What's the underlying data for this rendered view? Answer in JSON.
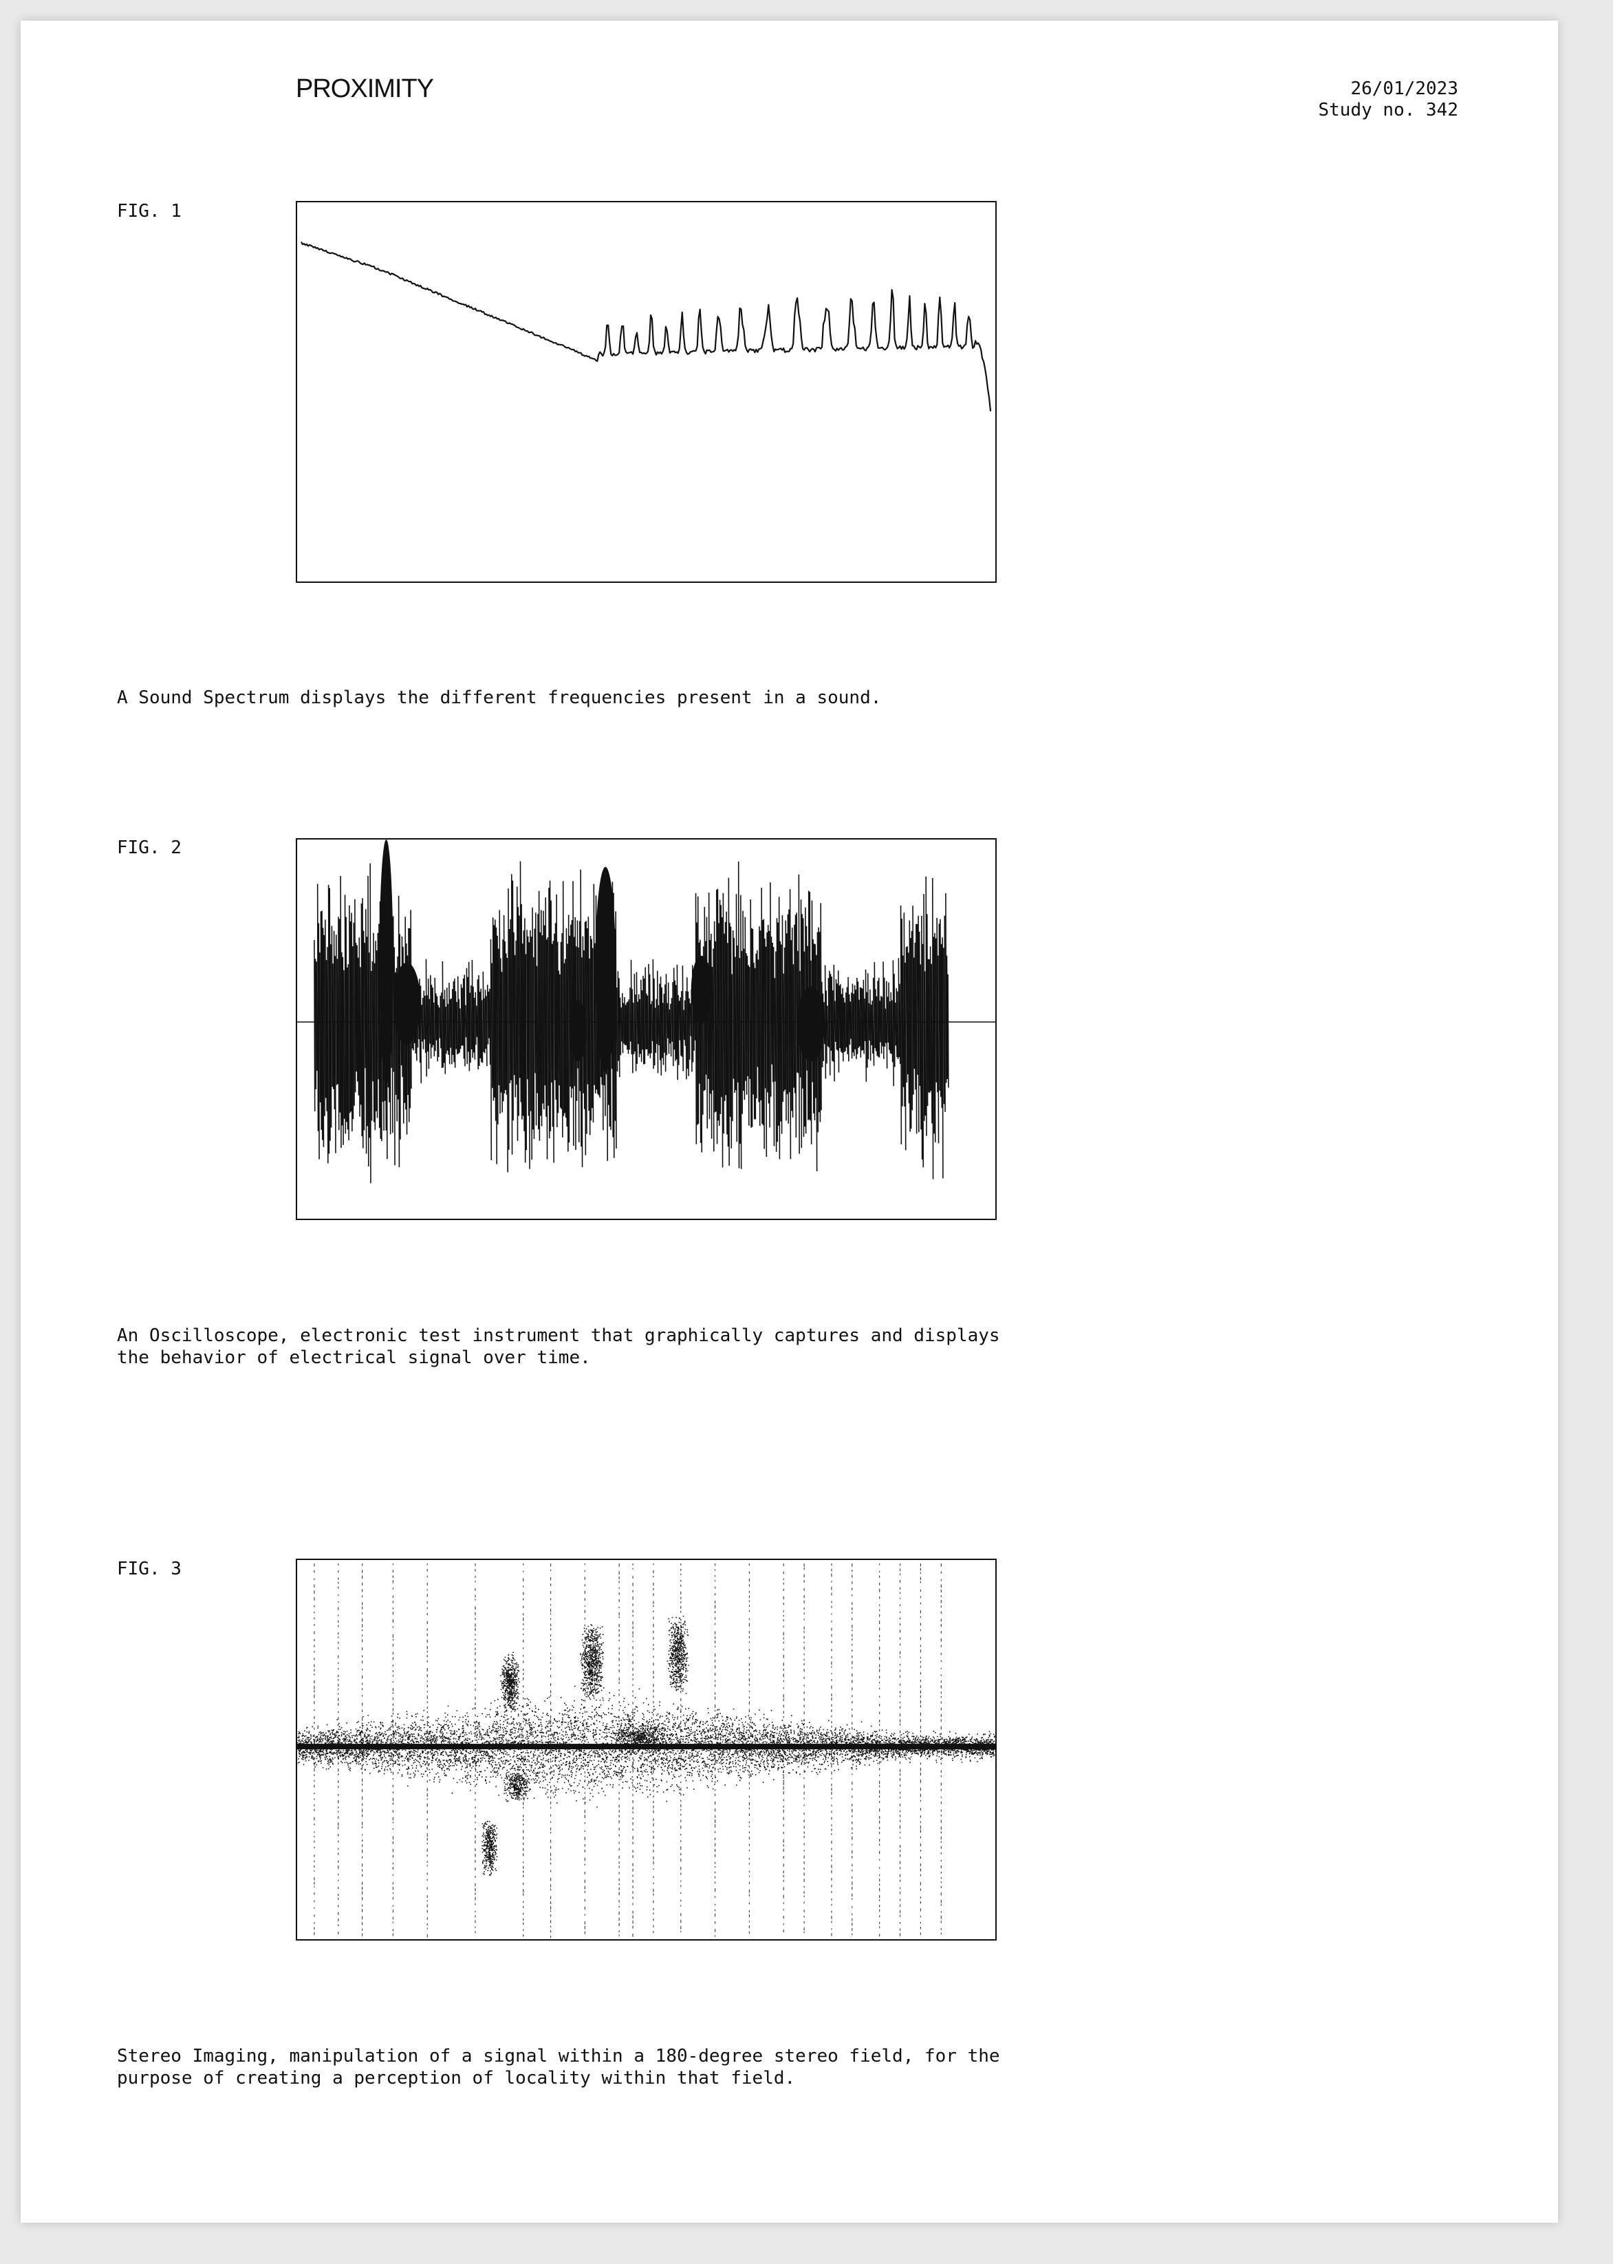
{
  "header": {
    "brand": "PROXIMITY",
    "date": "26/01/2023",
    "study": "Study no. 342"
  },
  "figures": [
    {
      "label": "FIG. 1",
      "caption": "A Sound Spectrum displays the different frequencies present in a sound.",
      "chart_data": {
        "type": "line"
      }
    },
    {
      "label": "FIG. 2",
      "caption": "An Oscilloscope, electronic test instrument that graphically captures and displays\nthe behavior of electrical signal over time.",
      "chart_data": {
        "type": "line"
      }
    },
    {
      "label": "FIG. 3",
      "caption": "Stereo Imaging, manipulation of a signal within a 180-degree stereo field, for the\npurpose of creating a perception of locality within that field.",
      "chart_data": {
        "type": "scatter"
      }
    }
  ]
}
